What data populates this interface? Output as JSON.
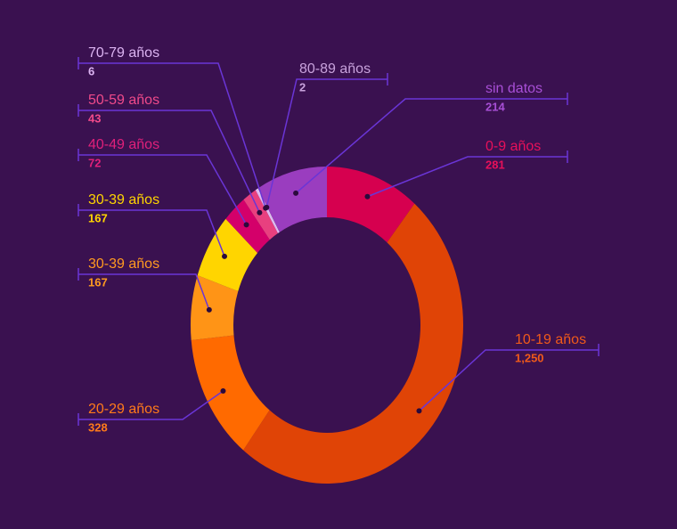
{
  "chart_data": {
    "type": "donut",
    "categories": [
      "0-9 años",
      "10-19 años",
      "20-29 años",
      "30-39 años",
      "30-39 años",
      "40-49 años",
      "50-59 años",
      "70-79 años",
      "80-89 años",
      "sin datos"
    ],
    "values": [
      281,
      1250,
      328,
      167,
      167,
      72,
      43,
      6,
      2,
      214
    ],
    "value_labels": [
      "281",
      "1,250",
      "328",
      "167",
      "167",
      "72",
      "43",
      "6",
      "2",
      "214"
    ],
    "colors": [
      "#d6004f",
      "#e04406",
      "#ff6a00",
      "#ff9416",
      "#ffd500",
      "#d4006a",
      "#e8407f",
      "#e0b8f5",
      "#ffffff",
      "#9a3dbf"
    ],
    "label_colors": [
      "#e8105a",
      "#f05a1a",
      "#ff7a1a",
      "#ff9a20",
      "#ffd500",
      "#e0207a",
      "#f04a8a",
      "#dcb4f2",
      "#c8a2dc",
      "#a84fd6"
    ]
  }
}
